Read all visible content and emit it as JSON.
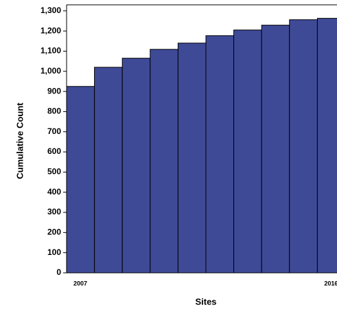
{
  "chart_data": {
    "type": "bar",
    "y_label": "Cumulative Count",
    "x_label": "Sites",
    "categories": [
      "2007",
      null,
      null,
      null,
      null,
      null,
      null,
      null,
      null,
      "2016"
    ],
    "values": [
      925,
      1020,
      1065,
      1109,
      1140,
      1177,
      1205,
      1229,
      1256,
      1263
    ],
    "color": "#3f4a97",
    "ylim": [
      0,
      1330
    ],
    "yticks": [
      0,
      100,
      200,
      300,
      400,
      500,
      600,
      700,
      800,
      900,
      {
        "value": 1000,
        "label": "1,000"
      },
      {
        "value": 1100,
        "label": "1,100"
      },
      {
        "value": 1200,
        "label": "1,200"
      },
      {
        "value": 1300,
        "label": "1,300"
      }
    ]
  }
}
